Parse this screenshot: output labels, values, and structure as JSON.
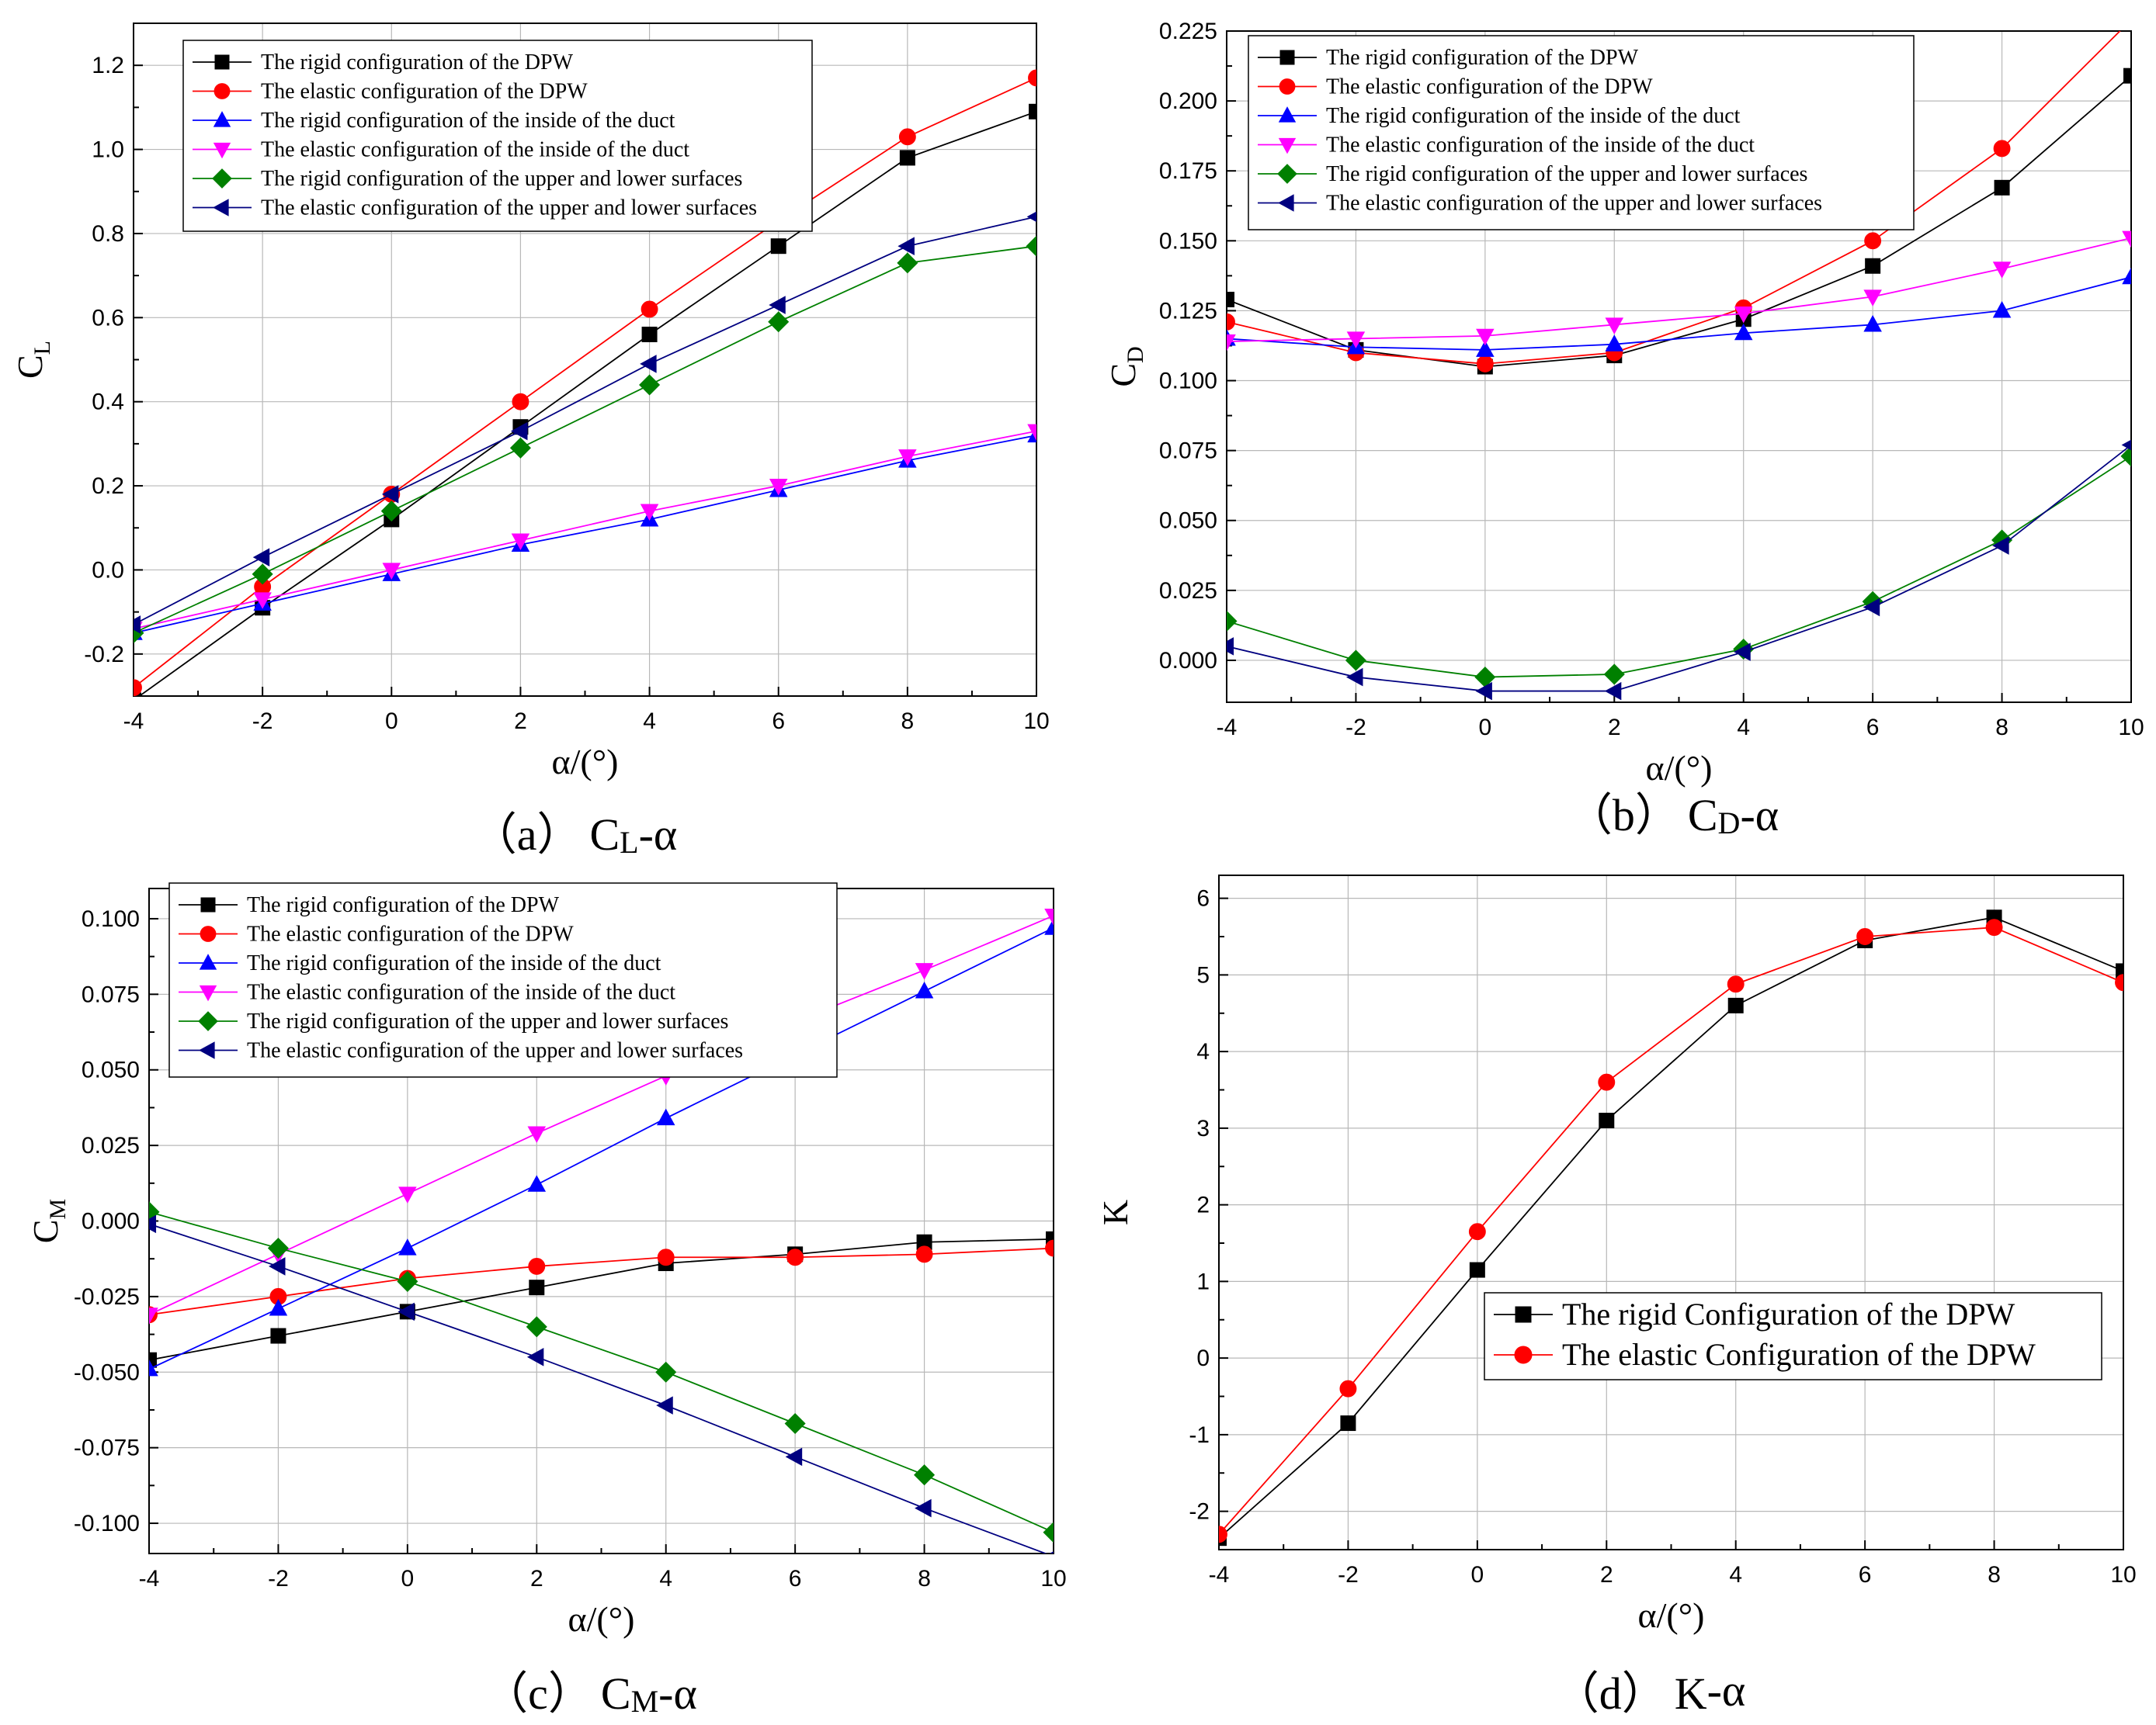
{
  "figure": {
    "panels": [
      {
        "id": "a",
        "caption": {
          "prefix": "（a）",
          "main": "C",
          "sub": "L",
          "suffix": "-α"
        },
        "xlabel": "α/(°)",
        "ylabel": {
          "main": "C",
          "sub": "L"
        },
        "legend_font": 28
      },
      {
        "id": "b",
        "caption": {
          "prefix": "（b）",
          "main": "C",
          "sub": "D",
          "suffix": "-α"
        },
        "xlabel": "α/(°)",
        "ylabel": {
          "main": "C",
          "sub": "D"
        },
        "legend_font": 28
      },
      {
        "id": "c",
        "caption": {
          "prefix": "（c）",
          "main": "C",
          "sub": "M",
          "suffix": "-α"
        },
        "xlabel": "α/(°)",
        "ylabel": {
          "main": "C",
          "sub": "M"
        },
        "legend_font": 28
      },
      {
        "id": "d",
        "caption": {
          "prefix": "（d）",
          "main": "K",
          "sub": "",
          "suffix": "-α"
        },
        "xlabel": "α/(°)",
        "ylabel": {
          "main": "K",
          "sub": ""
        },
        "legend_font": 40
      }
    ]
  },
  "chart_data": [
    {
      "type": "line",
      "x": [
        -4,
        -2,
        0,
        2,
        4,
        6,
        8,
        10
      ],
      "xlim": [
        -4,
        10
      ],
      "ylim": [
        -0.3,
        1.3
      ],
      "yticks": [
        -0.2,
        0.0,
        0.2,
        0.4,
        0.6,
        0.8,
        1.0,
        1.2
      ],
      "ytick_labels": [
        "-0.2",
        "0.0",
        "0.2",
        "0.4",
        "0.6",
        "0.8",
        "1.0",
        "1.2"
      ],
      "xticks": [
        -4,
        -2,
        0,
        2,
        4,
        6,
        8,
        10
      ],
      "xtick_labels": [
        "-4",
        "-2",
        "0",
        "2",
        "4",
        "6",
        "8",
        "10"
      ],
      "grid": true,
      "legend_position": "top-left",
      "series": [
        {
          "name": "The rigid configuration of the DPW",
          "color": "#000000",
          "marker": "square",
          "values": [
            -0.31,
            -0.09,
            0.12,
            0.34,
            0.56,
            0.77,
            0.98,
            1.09
          ]
        },
        {
          "name": "The elastic configuration of the DPW",
          "color": "#ff0000",
          "marker": "circle",
          "values": [
            -0.28,
            -0.04,
            0.18,
            0.4,
            0.62,
            0.83,
            1.03,
            1.17
          ]
        },
        {
          "name": "The rigid configuration of the inside of the duct",
          "color": "#0000ff",
          "marker": "triangle-up",
          "values": [
            -0.15,
            -0.08,
            -0.01,
            0.06,
            0.12,
            0.19,
            0.26,
            0.32
          ]
        },
        {
          "name": "The elastic configuration of the inside of the duct",
          "color": "#ff00ff",
          "marker": "triangle-down",
          "values": [
            -0.14,
            -0.07,
            0.0,
            0.07,
            0.14,
            0.2,
            0.27,
            0.33
          ]
        },
        {
          "name": "The rigid configuration of the upper and lower surfaces",
          "color": "#008000",
          "marker": "diamond",
          "values": [
            -0.15,
            -0.01,
            0.14,
            0.29,
            0.44,
            0.59,
            0.73,
            0.77
          ]
        },
        {
          "name": "The elastic configuration of the upper and lower surfaces",
          "color": "#000080",
          "marker": "triangle-left",
          "values": [
            -0.13,
            0.03,
            0.18,
            0.33,
            0.49,
            0.63,
            0.77,
            0.84
          ]
        }
      ]
    },
    {
      "type": "line",
      "x": [
        -4,
        -2,
        0,
        2,
        4,
        6,
        8,
        10
      ],
      "xlim": [
        -4,
        10
      ],
      "ylim": [
        -0.015,
        0.225
      ],
      "yticks": [
        0.0,
        0.025,
        0.05,
        0.075,
        0.1,
        0.125,
        0.15,
        0.175,
        0.2,
        0.225
      ],
      "ytick_labels": [
        "0.000",
        "0.025",
        "0.050",
        "0.075",
        "0.100",
        "0.125",
        "0.150",
        "0.175",
        "0.200",
        "0.225"
      ],
      "xticks": [
        -4,
        -2,
        0,
        2,
        4,
        6,
        8,
        10
      ],
      "xtick_labels": [
        "-4",
        "-2",
        "0",
        "2",
        "4",
        "6",
        "8",
        "10"
      ],
      "grid": true,
      "legend_position": "top-left",
      "series": [
        {
          "name": "The rigid configuration of the DPW",
          "color": "#000000",
          "marker": "square",
          "values": [
            0.129,
            0.111,
            0.105,
            0.109,
            0.122,
            0.141,
            0.169,
            0.209
          ]
        },
        {
          "name": "The elastic configuration of the DPW",
          "color": "#ff0000",
          "marker": "circle",
          "values": [
            0.121,
            0.11,
            0.106,
            0.11,
            0.126,
            0.15,
            0.183,
            0.229
          ]
        },
        {
          "name": "The rigid configuration of the inside of the duct",
          "color": "#0000ff",
          "marker": "triangle-up",
          "values": [
            0.115,
            0.112,
            0.111,
            0.113,
            0.117,
            0.12,
            0.125,
            0.137
          ]
        },
        {
          "name": "The elastic configuration of the inside of the duct",
          "color": "#ff00ff",
          "marker": "triangle-down",
          "values": [
            0.114,
            0.115,
            0.116,
            0.12,
            0.124,
            0.13,
            0.14,
            0.151
          ]
        },
        {
          "name": "The rigid configuration of the upper and lower surfaces",
          "color": "#008000",
          "marker": "diamond",
          "values": [
            0.014,
            0.0,
            -0.006,
            -0.005,
            0.004,
            0.021,
            0.043,
            0.073
          ]
        },
        {
          "name": "The elastic configuration of the upper and lower surfaces",
          "color": "#000080",
          "marker": "triangle-left",
          "values": [
            0.005,
            -0.006,
            -0.011,
            -0.011,
            0.003,
            0.019,
            0.041,
            0.077
          ]
        }
      ]
    },
    {
      "type": "line",
      "x": [
        -4,
        -2,
        0,
        2,
        4,
        6,
        8,
        10
      ],
      "xlim": [
        -4,
        10
      ],
      "ylim": [
        -0.11,
        0.11
      ],
      "yticks": [
        -0.1,
        -0.075,
        -0.05,
        -0.025,
        0.0,
        0.025,
        0.05,
        0.075,
        0.1
      ],
      "ytick_labels": [
        "-0.100",
        "-0.075",
        "-0.050",
        "-0.025",
        "0.000",
        "0.025",
        "0.050",
        "0.075",
        "0.100"
      ],
      "xticks": [
        -4,
        -2,
        0,
        2,
        4,
        6,
        8,
        10
      ],
      "xtick_labels": [
        "-4",
        "-2",
        "0",
        "2",
        "4",
        "6",
        "8",
        "10"
      ],
      "grid": true,
      "legend_position": "top",
      "series": [
        {
          "name": "The rigid configuration of the DPW",
          "color": "#000000",
          "marker": "square",
          "values": [
            -0.046,
            -0.038,
            -0.03,
            -0.022,
            -0.014,
            -0.011,
            -0.007,
            -0.006
          ]
        },
        {
          "name": "The elastic configuration of the DPW",
          "color": "#ff0000",
          "marker": "circle",
          "values": [
            -0.031,
            -0.025,
            -0.019,
            -0.015,
            -0.012,
            -0.012,
            -0.011,
            -0.009
          ]
        },
        {
          "name": "The rigid configuration of the inside of the duct",
          "color": "#0000ff",
          "marker": "triangle-up",
          "values": [
            -0.049,
            -0.029,
            -0.009,
            0.012,
            0.034,
            0.055,
            0.076,
            0.097
          ]
        },
        {
          "name": "The elastic configuration of the inside of the duct",
          "color": "#ff00ff",
          "marker": "triangle-down",
          "values": [
            -0.031,
            -0.011,
            0.009,
            0.029,
            0.048,
            0.066,
            0.083,
            0.101
          ]
        },
        {
          "name": "The rigid configuration of the upper and lower surfaces",
          "color": "#008000",
          "marker": "diamond",
          "values": [
            0.003,
            -0.009,
            -0.02,
            -0.035,
            -0.05,
            -0.067,
            -0.084,
            -0.103
          ]
        },
        {
          "name": "The elastic configuration of the upper and lower surfaces",
          "color": "#000080",
          "marker": "triangle-left",
          "values": [
            -0.001,
            -0.015,
            -0.03,
            -0.045,
            -0.061,
            -0.078,
            -0.095,
            -0.111
          ]
        }
      ]
    },
    {
      "type": "line",
      "x": [
        -4,
        -2,
        0,
        2,
        4,
        6,
        8,
        10
      ],
      "xlim": [
        -4,
        10
      ],
      "ylim": [
        -2.5,
        6.3
      ],
      "yticks": [
        -2,
        -1,
        0,
        1,
        2,
        3,
        4,
        5,
        6
      ],
      "ytick_labels": [
        "-2",
        "-1",
        "0",
        "1",
        "2",
        "3",
        "4",
        "5",
        "6"
      ],
      "xticks": [
        -4,
        -2,
        0,
        2,
        4,
        6,
        8,
        10
      ],
      "xtick_labels": [
        "-4",
        "-2",
        "0",
        "2",
        "4",
        "6",
        "8",
        "10"
      ],
      "grid": true,
      "legend_position": "center-right",
      "series": [
        {
          "name": "The rigid Configuration of the DPW",
          "color": "#000000",
          "marker": "square",
          "values": [
            -2.35,
            -0.85,
            1.15,
            3.1,
            4.6,
            5.45,
            5.75,
            5.05
          ]
        },
        {
          "name": "The elastic Configuration of the DPW",
          "color": "#ff0000",
          "marker": "circle",
          "values": [
            -2.3,
            -0.4,
            1.65,
            3.6,
            4.88,
            5.5,
            5.62,
            4.9
          ]
        }
      ]
    }
  ]
}
